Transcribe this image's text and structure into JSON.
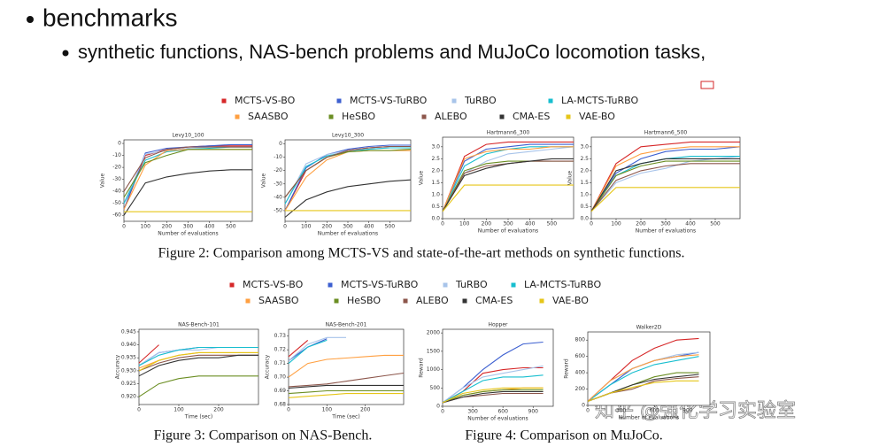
{
  "bullets": {
    "main": "benchmarks",
    "sub": "synthetic functions, NAS-bench problems and MuJoCo locomotion tasks,"
  },
  "figures": [
    {
      "caption": "Figure 2: Comparison among MCTS-VS and state-of-the-art methods on synthetic functions.",
      "legend": [
        {
          "label": "MCTS-VS-BO",
          "color": "#d62728"
        },
        {
          "label": "MCTS-VS-TuRBO",
          "color": "#3c5fd0"
        },
        {
          "label": "TuRBO",
          "color": "#a8c4ea"
        },
        {
          "label": "LA-MCTS-TuRBO",
          "color": "#17becf"
        },
        {
          "label": "SAASBO",
          "color": "#ff9f40"
        },
        {
          "label": "HeSBO",
          "color": "#6b8e23"
        },
        {
          "label": "ALEBO",
          "color": "#8c564b"
        },
        {
          "label": "CMA-ES",
          "color": "#333333"
        },
        {
          "label": "VAE-BO",
          "color": "#e6c619"
        }
      ],
      "panels": [
        {
          "title": "Levy10_100",
          "xlabel": "Number of evaluations",
          "ylabel": "Value",
          "xlim": [
            0,
            600
          ],
          "xticks": [
            0,
            100,
            200,
            300,
            400,
            500
          ],
          "ylim": [
            -65,
            3
          ],
          "yticks": [
            0,
            -10,
            -20,
            -30,
            -40,
            -50,
            -60
          ],
          "x": [
            0,
            100,
            200,
            300,
            400,
            500,
            600
          ],
          "lines": [
            [
              -55,
              -10,
              -5,
              -3,
              -2,
              -2,
              -2
            ],
            [
              -55,
              -8,
              -4,
              -3,
              -2,
              -1,
              -1
            ],
            [
              -50,
              -9,
              -6,
              -4,
              -3,
              -3,
              -3
            ],
            [
              -50,
              -14,
              -7,
              -5,
              -4,
              -3,
              -3
            ],
            [
              -55,
              -18,
              -6,
              -5,
              -5,
              -5,
              -5
            ],
            [
              -45,
              -16,
              -10,
              -5,
              -5,
              -5,
              -5
            ],
            [
              -40,
              -12,
              -5,
              -3,
              -3,
              -3,
              -3
            ],
            [
              -60,
              -33,
              -28,
              -25,
              -23,
              -22,
              -22
            ],
            [
              -57,
              -57,
              -57,
              -57,
              -57,
              -57,
              -57
            ]
          ]
        },
        {
          "title": "Levy10_300",
          "xlabel": "Number of evaluations",
          "ylabel": "Value",
          "xlim": [
            0,
            600
          ],
          "xticks": [
            0,
            100,
            200,
            300,
            400,
            500
          ],
          "ylim": [
            -58,
            3
          ],
          "yticks": [
            0,
            -10,
            -20,
            -30,
            -40,
            -50
          ],
          "x": [
            0,
            100,
            200,
            300,
            400,
            500,
            600
          ],
          "lines": [
            [
              -50,
              -20,
              -10,
              -5,
              -3,
              -2,
              -2
            ],
            [
              -50,
              -18,
              -8,
              -4,
              -2,
              -1,
              -1
            ],
            [
              -45,
              -15,
              -8,
              -5,
              -4,
              -3,
              -3
            ],
            [
              -45,
              -17,
              -9,
              -6,
              -4,
              -3,
              -3
            ],
            [
              -50,
              -25,
              -12,
              -6,
              -5,
              -5,
              -5
            ],
            [
              -40,
              -20,
              -10,
              -6,
              -5,
              -5,
              -4
            ],
            [
              -40,
              -20,
              -10,
              -5,
              -3,
              -2,
              -2
            ],
            [
              -55,
              -42,
              -36,
              -32,
              -30,
              -28,
              -27
            ],
            [
              -50,
              -50,
              -50,
              -50,
              -50,
              -50,
              -50
            ]
          ]
        },
        {
          "title": "Hartmann6_300",
          "xlabel": "Number of evaluations",
          "ylabel": "Value",
          "xlim": [
            0,
            600
          ],
          "xticks": [
            0,
            100,
            200,
            300,
            400,
            500
          ],
          "ylim": [
            0,
            3.4
          ],
          "yticks": [
            {
              "value": 0,
              "label": "0.0"
            },
            0.5,
            {
              "value": 1,
              "label": "1.0"
            },
            1.5,
            {
              "value": 2,
              "label": "2.0"
            },
            2.5,
            {
              "value": 3,
              "label": "3.0"
            }
          ],
          "x": [
            0,
            100,
            200,
            300,
            400,
            500,
            600
          ],
          "lines": [
            [
              0.3,
              2.6,
              3.1,
              3.2,
              3.2,
              3.2,
              3.2
            ],
            [
              0.3,
              2.4,
              2.9,
              3.0,
              3.1,
              3.1,
              3.1
            ],
            [
              0.3,
              1.9,
              2.4,
              2.7,
              2.8,
              2.9,
              3.0
            ],
            [
              0.3,
              2.2,
              2.7,
              2.9,
              3.0,
              3.0,
              3.0
            ],
            [
              0.3,
              2.5,
              2.8,
              2.9,
              2.9,
              3.0,
              3.0
            ],
            [
              0.3,
              2.0,
              2.3,
              2.4,
              2.4,
              2.4,
              2.4
            ],
            [
              0.3,
              1.9,
              2.2,
              2.3,
              2.4,
              2.4,
              2.4
            ],
            [
              0.3,
              1.8,
              2.1,
              2.3,
              2.4,
              2.5,
              2.5
            ],
            [
              0.3,
              1.4,
              1.4,
              1.4,
              1.4,
              1.4,
              1.4
            ]
          ]
        },
        {
          "title": "Hartmann6_500",
          "xlabel": "Number of evaluations",
          "ylabel": "Value",
          "xlim": [
            0,
            600
          ],
          "xticks": [
            0,
            100,
            200,
            300,
            400,
            500
          ],
          "ylim": [
            0,
            3.4
          ],
          "yticks": [
            {
              "value": 0,
              "label": "0.0"
            },
            0.5,
            {
              "value": 1,
              "label": "1.0"
            },
            1.5,
            {
              "value": 2,
              "label": "2.0"
            },
            2.5,
            {
              "value": 3,
              "label": "3.0"
            }
          ],
          "x": [
            0,
            100,
            200,
            300,
            400,
            500,
            600
          ],
          "lines": [
            [
              0.3,
              2.3,
              3.0,
              3.1,
              3.2,
              3.2,
              3.2
            ],
            [
              0.3,
              1.9,
              2.5,
              2.8,
              2.9,
              2.9,
              3.0
            ],
            [
              0.3,
              1.5,
              1.9,
              2.1,
              2.4,
              2.5,
              2.6
            ],
            [
              0.3,
              1.8,
              2.3,
              2.5,
              2.6,
              2.6,
              2.6
            ],
            [
              0.3,
              2.2,
              2.7,
              2.9,
              3.0,
              3.0,
              3.0
            ],
            [
              0.3,
              1.8,
              2.2,
              2.4,
              2.4,
              2.4,
              2.4
            ],
            [
              0.3,
              1.6,
              2.0,
              2.2,
              2.3,
              2.3,
              2.3
            ],
            [
              0.3,
              2.0,
              2.3,
              2.5,
              2.5,
              2.5,
              2.5
            ],
            [
              0.3,
              1.3,
              1.3,
              1.3,
              1.3,
              1.3,
              1.3
            ]
          ]
        }
      ]
    },
    {
      "caption": "Figure 3: Comparison on NAS-Bench.",
      "legend": [
        {
          "label": "MCTS-VS-BO",
          "color": "#d62728"
        },
        {
          "label": "MCTS-VS-TuRBO",
          "color": "#3c5fd0"
        },
        {
          "label": "TuRBO",
          "color": "#a8c4ea"
        },
        {
          "label": "LA-MCTS-TuRBO",
          "color": "#17becf"
        },
        {
          "label": "SAASBO",
          "color": "#ff9f40"
        },
        {
          "label": "HeSBO",
          "color": "#6b8e23"
        },
        {
          "label": "ALEBO",
          "color": "#8c564b"
        },
        {
          "label": "CMA-ES",
          "color": "#333333"
        },
        {
          "label": "VAE-BO",
          "color": "#e6c619"
        }
      ],
      "panels": [
        {
          "title": "NAS-Bench-101",
          "xlabel": "Time (sec)",
          "ylabel": "Accuracy",
          "xlim": [
            0,
            300
          ],
          "xticks": [
            0,
            100,
            200
          ],
          "ylim": [
            0.917,
            0.946
          ],
          "yticks": [
            {
              "value": 0.92,
              "label": "0.920"
            },
            0.925,
            {
              "value": 0.93,
              "label": "0.930"
            },
            0.935,
            {
              "value": 0.94,
              "label": "0.940"
            },
            0.945
          ],
          "x": [
            0,
            50,
            100,
            150,
            200,
            250,
            300
          ],
          "lines": [
            [
              0.933,
              0.94,
              null,
              null,
              null,
              null,
              null
            ],
            [
              0.932,
              0.937,
              0.938,
              0.939,
              0.939,
              0.939,
              0.939
            ],
            [
              0.932,
              0.937,
              0.938,
              0.938,
              0.939,
              0.939,
              0.939
            ],
            [
              0.932,
              0.936,
              0.938,
              0.939,
              0.939,
              0.939,
              0.939
            ],
            [
              0.931,
              0.934,
              0.936,
              0.937,
              0.937,
              0.937,
              0.937
            ],
            [
              0.92,
              0.925,
              0.927,
              0.928,
              0.928,
              0.928,
              0.928
            ],
            [
              0.93,
              0.933,
              0.935,
              0.936,
              0.936,
              0.936,
              0.936
            ],
            [
              0.928,
              0.932,
              0.934,
              0.935,
              0.935,
              0.936,
              0.936
            ],
            [
              0.93,
              0.934,
              0.936,
              0.937,
              0.937,
              0.937,
              0.937
            ]
          ]
        },
        {
          "title": "NAS-Bench-201",
          "xlabel": "Time (sec)",
          "ylabel": "Accuracy",
          "xlim": [
            0,
            300
          ],
          "xticks": [
            0,
            100,
            200
          ],
          "ylim": [
            0.68,
            0.735
          ],
          "yticks": [
            0.68,
            0.69,
            {
              "value": 0.7,
              "label": "0.70"
            },
            0.71,
            0.72,
            0.73
          ],
          "x": [
            0,
            50,
            100,
            150,
            200,
            250,
            300
          ],
          "lines": [
            [
              0.715,
              0.727,
              null,
              null,
              null,
              null,
              null
            ],
            [
              0.712,
              0.722,
              0.728,
              null,
              null,
              null,
              null
            ],
            [
              0.712,
              0.724,
              0.729,
              0.729,
              null,
              null,
              null
            ],
            [
              0.71,
              0.722,
              0.727,
              null,
              null,
              null,
              null
            ],
            [
              0.7,
              0.71,
              0.713,
              0.714,
              0.715,
              0.716,
              0.716
            ],
            [
              0.688,
              0.689,
              0.69,
              0.69,
              0.69,
              0.69,
              0.69
            ],
            [
              0.693,
              0.694,
              0.695,
              0.697,
              0.699,
              0.701,
              0.703
            ],
            [
              0.692,
              0.693,
              0.694,
              0.694,
              0.694,
              0.694,
              0.694
            ],
            [
              0.685,
              0.686,
              0.687,
              0.688,
              0.688,
              0.688,
              0.688
            ]
          ]
        }
      ]
    },
    {
      "caption": "Figure 4: Comparison on MuJoCo.",
      "panels": [
        {
          "title": "Hopper",
          "xlabel": "Number of evaluations",
          "ylabel": "Reward",
          "xlim": [
            0,
            1100
          ],
          "xticks": [
            0,
            300,
            600,
            900
          ],
          "ylim": [
            0,
            2100
          ],
          "yticks": [
            0,
            500,
            1000,
            1500,
            2000
          ],
          "x": [
            0,
            200,
            400,
            600,
            800,
            1000
          ],
          "lines": [
            [
              100,
              400,
              900,
              1000,
              1050,
              1050
            ],
            [
              100,
              500,
              1000,
              1400,
              1700,
              1750
            ],
            [
              100,
              500,
              800,
              900,
              1000,
              1100
            ],
            [
              100,
              400,
              700,
              800,
              800,
              850
            ],
            [
              100,
              300,
              400,
              450,
              500,
              500
            ],
            [
              100,
              300,
              400,
              450,
              450,
              450
            ],
            [
              100,
              250,
              300,
              350,
              350,
              350
            ],
            [
              100,
              250,
              350,
              400,
              400,
              400
            ],
            [
              100,
              350,
              450,
              500,
              500,
              500
            ]
          ]
        },
        {
          "title": "Walker2D",
          "xlabel": "Number of evaluations",
          "ylabel": "Reward",
          "xlim": [
            0,
            1100
          ],
          "xticks": [
            0,
            300,
            600,
            900
          ],
          "ylim": [
            0,
            900
          ],
          "yticks": [
            0,
            200,
            400,
            600,
            800
          ],
          "x": [
            0,
            200,
            400,
            600,
            800,
            1000
          ],
          "lines": [
            [
              50,
              300,
              550,
              700,
              800,
              820
            ],
            [
              50,
              250,
              450,
              550,
              600,
              650
            ],
            [
              50,
              300,
              450,
              550,
              620,
              650
            ],
            [
              50,
              250,
              400,
              500,
              550,
              600
            ],
            [
              50,
              300,
              450,
              550,
              600,
              620
            ],
            [
              50,
              150,
              250,
              350,
              400,
              400
            ],
            [
              50,
              150,
              200,
              300,
              330,
              350
            ],
            [
              50,
              150,
              250,
              320,
              350,
              380
            ],
            [
              50,
              150,
              220,
              280,
              300,
              300
            ]
          ]
        }
      ]
    }
  ],
  "watermark": "知乎 @强化学习实验室"
}
